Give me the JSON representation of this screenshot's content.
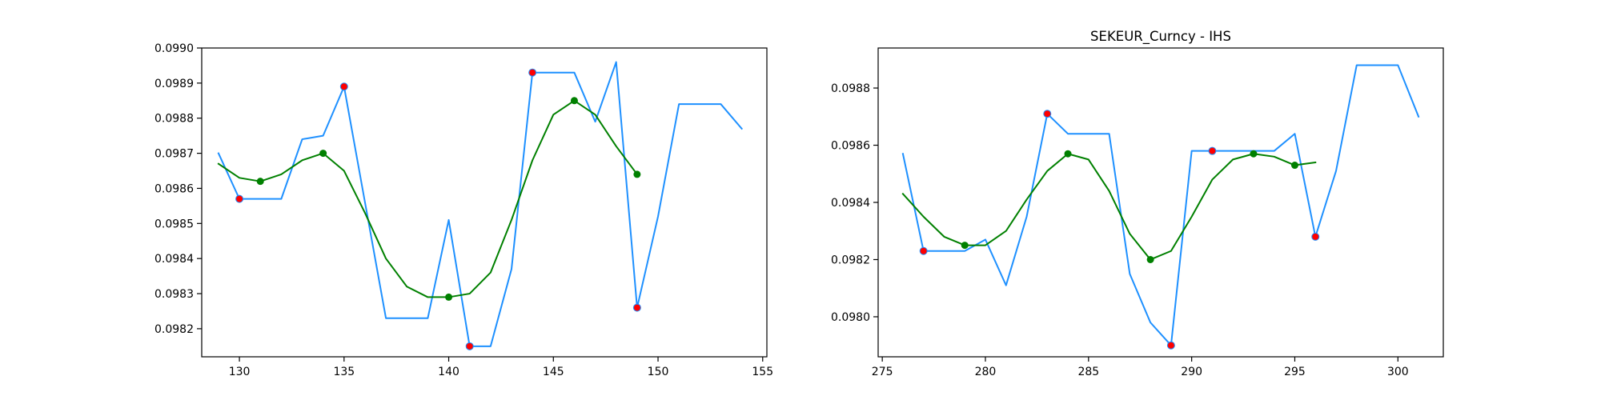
{
  "chart_data": [
    {
      "type": "line",
      "title": "",
      "xlabel": "",
      "ylabel": "",
      "xlim": [
        128.2,
        155.2
      ],
      "ylim": [
        0.09812,
        0.099
      ],
      "x_ticks": [
        130,
        135,
        140,
        145,
        150,
        155
      ],
      "x_tick_labels": [
        "130",
        "135",
        "140",
        "145",
        "150",
        "155"
      ],
      "y_ticks": [
        0.0982,
        0.0983,
        0.0984,
        0.0985,
        0.0986,
        0.0987,
        0.0988,
        0.0989,
        0.099
      ],
      "y_tick_labels": [
        "0.0982",
        "0.0983",
        "0.0984",
        "0.0985",
        "0.0986",
        "0.0987",
        "0.0988",
        "0.0989",
        "0.0990"
      ],
      "grid": false,
      "series": [
        {
          "style": "line",
          "color": "#1e90ff",
          "points": [
            [
              129,
              0.0987
            ],
            [
              130,
              0.09857
            ],
            [
              131,
              0.09857
            ],
            [
              132,
              0.09857
            ],
            [
              133,
              0.09874
            ],
            [
              134,
              0.09875
            ],
            [
              135,
              0.09889
            ],
            [
              136,
              0.09856
            ],
            [
              137,
              0.09823
            ],
            [
              138,
              0.09823
            ],
            [
              139,
              0.09823
            ],
            [
              140,
              0.09851
            ],
            [
              141,
              0.09815
            ],
            [
              142,
              0.09815
            ],
            [
              143,
              0.09837
            ],
            [
              144,
              0.09893
            ],
            [
              145,
              0.09893
            ],
            [
              146,
              0.09893
            ],
            [
              147,
              0.09879
            ],
            [
              148,
              0.09896
            ],
            [
              149,
              0.09826
            ],
            [
              150,
              0.09852
            ],
            [
              151,
              0.09884
            ],
            [
              152,
              0.09884
            ],
            [
              153,
              0.09884
            ],
            [
              154,
              0.09877
            ]
          ]
        },
        {
          "style": "line",
          "color": "#008000",
          "points": [
            [
              129,
              0.09867
            ],
            [
              130,
              0.09863
            ],
            [
              131,
              0.09862
            ],
            [
              132,
              0.09864
            ],
            [
              133,
              0.09868
            ],
            [
              134,
              0.0987
            ],
            [
              135,
              0.09865
            ],
            [
              136,
              0.09853
            ],
            [
              137,
              0.0984
            ],
            [
              138,
              0.09832
            ],
            [
              139,
              0.09829
            ],
            [
              140,
              0.09829
            ],
            [
              141,
              0.0983
            ],
            [
              142,
              0.09836
            ],
            [
              143,
              0.09851
            ],
            [
              144,
              0.09868
            ],
            [
              145,
              0.09881
            ],
            [
              146,
              0.09885
            ],
            [
              147,
              0.09881
            ],
            [
              148,
              0.09872
            ],
            [
              149,
              0.09864
            ]
          ]
        },
        {
          "style": "scatter",
          "color": "#ff0000",
          "edgecolor": "#1e90ff",
          "points": [
            [
              130,
              0.09857
            ],
            [
              135,
              0.09889
            ],
            [
              141,
              0.09815
            ],
            [
              144,
              0.09893
            ],
            [
              149,
              0.09826
            ]
          ]
        },
        {
          "style": "scatter",
          "color": "#008000",
          "points": [
            [
              131,
              0.09862
            ],
            [
              134,
              0.0987
            ],
            [
              140,
              0.09829
            ],
            [
              146,
              0.09885
            ],
            [
              149,
              0.09864
            ]
          ]
        }
      ]
    },
    {
      "type": "line",
      "title": "SEKEUR_Curncy - IHS",
      "xlabel": "",
      "ylabel": "",
      "xlim": [
        274.8,
        302.2
      ],
      "ylim": [
        0.09786,
        0.09894
      ],
      "x_ticks": [
        275,
        280,
        285,
        290,
        295,
        300
      ],
      "x_tick_labels": [
        "275",
        "280",
        "285",
        "290",
        "295",
        "300"
      ],
      "y_ticks": [
        0.098,
        0.0982,
        0.0984,
        0.0986,
        0.0988
      ],
      "y_tick_labels": [
        "0.0980",
        "0.0982",
        "0.0984",
        "0.0986",
        "0.0988"
      ],
      "grid": false,
      "series": [
        {
          "style": "line",
          "color": "#1e90ff",
          "points": [
            [
              276,
              0.09857
            ],
            [
              277,
              0.09823
            ],
            [
              278,
              0.09823
            ],
            [
              279,
              0.09823
            ],
            [
              280,
              0.09827
            ],
            [
              281,
              0.09811
            ],
            [
              282,
              0.09835
            ],
            [
              283,
              0.09871
            ],
            [
              284,
              0.09864
            ],
            [
              285,
              0.09864
            ],
            [
              286,
              0.09864
            ],
            [
              287,
              0.09815
            ],
            [
              288,
              0.09798
            ],
            [
              289,
              0.0979
            ],
            [
              290,
              0.09858
            ],
            [
              291,
              0.09858
            ],
            [
              292,
              0.09858
            ],
            [
              293,
              0.09858
            ],
            [
              294,
              0.09858
            ],
            [
              295,
              0.09864
            ],
            [
              296,
              0.09828
            ],
            [
              297,
              0.09851
            ],
            [
              298,
              0.09888
            ],
            [
              299,
              0.09888
            ],
            [
              300,
              0.09888
            ],
            [
              301,
              0.0987
            ]
          ]
        },
        {
          "style": "line",
          "color": "#008000",
          "points": [
            [
              276,
              0.09843
            ],
            [
              277,
              0.09835
            ],
            [
              278,
              0.09828
            ],
            [
              279,
              0.09825
            ],
            [
              280,
              0.09825
            ],
            [
              281,
              0.0983
            ],
            [
              282,
              0.09841
            ],
            [
              283,
              0.09851
            ],
            [
              284,
              0.09857
            ],
            [
              285,
              0.09855
            ],
            [
              286,
              0.09844
            ],
            [
              287,
              0.09829
            ],
            [
              288,
              0.0982
            ],
            [
              289,
              0.09823
            ],
            [
              290,
              0.09835
            ],
            [
              291,
              0.09848
            ],
            [
              292,
              0.09855
            ],
            [
              293,
              0.09857
            ],
            [
              294,
              0.09856
            ],
            [
              295,
              0.09853
            ],
            [
              296,
              0.09854
            ]
          ]
        },
        {
          "style": "scatter",
          "color": "#ff0000",
          "edgecolor": "#1e90ff",
          "points": [
            [
              277,
              0.09823
            ],
            [
              283,
              0.09871
            ],
            [
              289,
              0.0979
            ],
            [
              291,
              0.09858
            ],
            [
              296,
              0.09828
            ]
          ]
        },
        {
          "style": "scatter",
          "color": "#008000",
          "points": [
            [
              279,
              0.09825
            ],
            [
              284,
              0.09857
            ],
            [
              288,
              0.0982
            ],
            [
              293,
              0.09857
            ],
            [
              295,
              0.09853
            ]
          ]
        }
      ]
    }
  ]
}
